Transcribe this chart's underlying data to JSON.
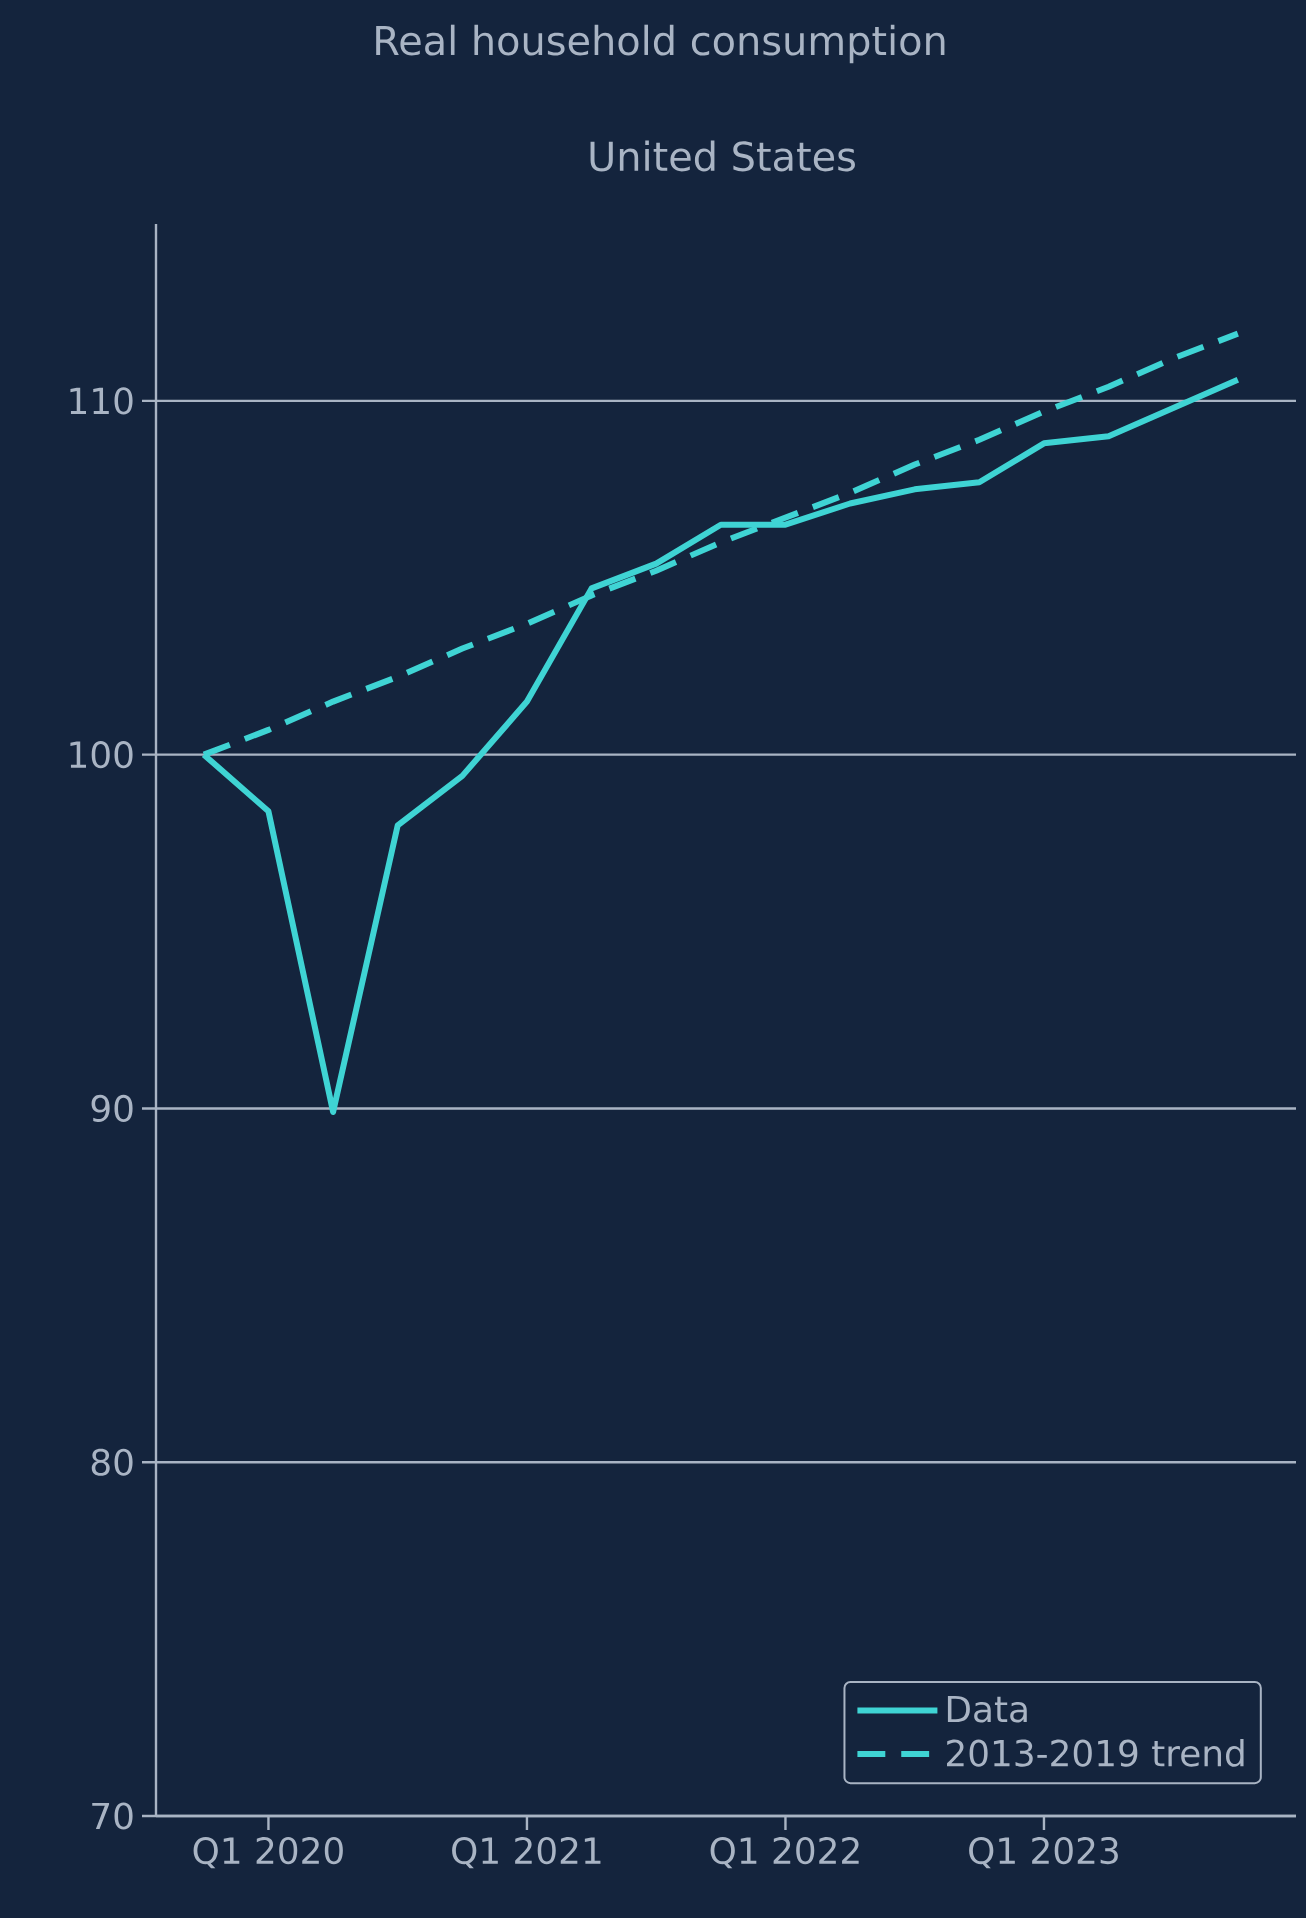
{
  "chart_data": {
    "type": "line",
    "title": "Real household consumption",
    "subtitle": "United States",
    "categories": [
      null,
      "Q1 2020",
      null,
      null,
      null,
      "Q1 2021",
      null,
      null,
      null,
      "Q1 2022",
      null,
      null,
      null,
      "Q1 2023",
      null,
      null,
      null
    ],
    "series": [
      {
        "name": "Data",
        "color": "#3fd4d4",
        "line_style": "solid",
        "values": [
          100,
          98.4,
          89.9,
          98.0,
          99.4,
          101.5,
          104.7,
          105.4,
          106.5,
          106.5,
          107.1,
          107.5,
          107.7,
          108.8,
          109.0,
          109.8,
          110.6
        ]
      },
      {
        "name": "2013-2019 trend",
        "color": "#3fd4d4",
        "line_style": "dashed",
        "values": [
          100,
          100.7,
          101.5,
          102.2,
          103.0,
          103.7,
          104.5,
          105.2,
          106.0,
          106.7,
          107.4,
          108.2,
          108.9,
          109.7,
          110.4,
          111.2,
          111.9
        ]
      }
    ],
    "ylim": [
      70,
      115
    ],
    "yticks": [
      70,
      80,
      90,
      100,
      110
    ],
    "grid": "y",
    "legend": "bottom right",
    "marker": "none"
  }
}
